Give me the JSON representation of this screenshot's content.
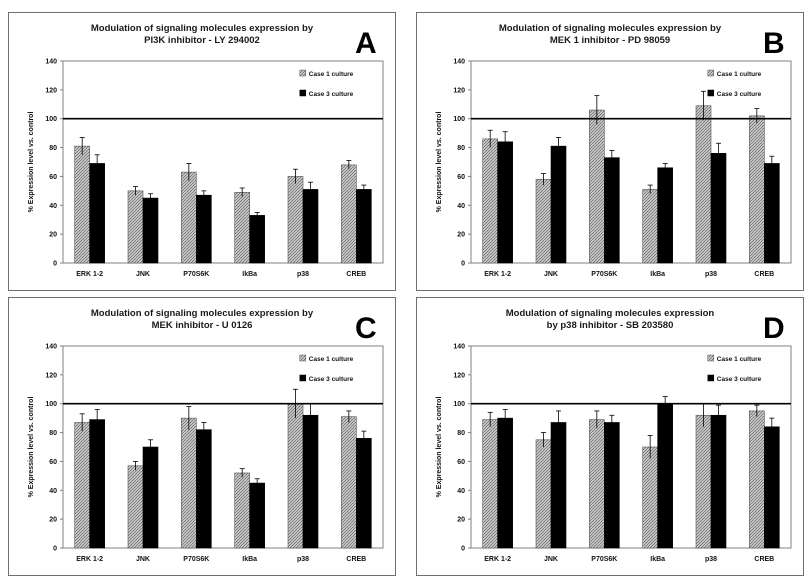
{
  "colors": {
    "case1": "#bdbdbd",
    "case3": "#000000",
    "frame": "#6f6f6f"
  },
  "chart_data": [
    {
      "type": "bar",
      "panel_letter": "A",
      "title_lines": [
        "Modulation of signaling molecules expression by",
        "PI3K inhibitor -  LY 294002"
      ],
      "ylabel": "% Expression level vs. control",
      "ylim": [
        0,
        140
      ],
      "yticks": [
        "0",
        "20",
        "40",
        "60",
        "80",
        "100",
        "120",
        "140"
      ],
      "reference_line": 100,
      "categories": [
        "ERK 1-2",
        "JNK",
        "P70S6K",
        "IkBa",
        "p38",
        "CREB"
      ],
      "series": [
        {
          "name": "Case 1 culture",
          "values": [
            81,
            50,
            63,
            49,
            60,
            68
          ],
          "errors": [
            6,
            3,
            6,
            3,
            5,
            3
          ]
        },
        {
          "name": "Case 3 culture",
          "values": [
            69,
            45,
            47,
            33,
            51,
            51
          ],
          "errors": [
            6,
            3,
            3,
            2,
            5,
            3
          ]
        }
      ]
    },
    {
      "type": "bar",
      "panel_letter": "B",
      "title_lines": [
        "Modulation of signaling molecules expression by",
        "MEK 1  inhibitor -  PD 98059"
      ],
      "ylabel": "% Expression level vs. control",
      "ylim": [
        0,
        140
      ],
      "yticks": [
        "0",
        "20",
        "40",
        "60",
        "80",
        "100",
        "120",
        "140"
      ],
      "reference_line": 100,
      "categories": [
        "ERK 1-2",
        "JNK",
        "P70S6K",
        "IkBa",
        "p38",
        "CREB"
      ],
      "series": [
        {
          "name": "Case 1 culture",
          "values": [
            86,
            58,
            106,
            51,
            109,
            102
          ],
          "errors": [
            6,
            4,
            10,
            3,
            10,
            5
          ]
        },
        {
          "name": "Case 3 culture",
          "values": [
            84,
            81,
            73,
            66,
            76,
            69
          ],
          "errors": [
            7,
            6,
            5,
            3,
            7,
            5
          ]
        }
      ]
    },
    {
      "type": "bar",
      "panel_letter": "C",
      "title_lines": [
        "Modulation of signaling molecules expression by",
        "MEK inhibitor - U 0126"
      ],
      "ylabel": "% Expression level vs. control",
      "ylim": [
        0,
        140
      ],
      "yticks": [
        "0",
        "20",
        "40",
        "60",
        "80",
        "100",
        "120",
        "140"
      ],
      "reference_line": 100,
      "categories": [
        "ERK 1-2",
        "JNK",
        "P70S6K",
        "IkBa",
        "p38",
        "CREB"
      ],
      "series": [
        {
          "name": "Case 1 culture",
          "values": [
            87,
            57,
            90,
            52,
            100,
            91
          ],
          "errors": [
            6,
            3,
            8,
            3,
            10,
            4
          ]
        },
        {
          "name": "Case 3 culture",
          "values": [
            89,
            70,
            82,
            45,
            92,
            76
          ],
          "errors": [
            7,
            5,
            5,
            3,
            8,
            5
          ]
        }
      ]
    },
    {
      "type": "bar",
      "panel_letter": "D",
      "title_lines": [
        "Modulation of signaling molecules expression",
        "by p38 inhibitor -  SB 203580"
      ],
      "ylabel": "% Expression level vs. control",
      "ylim": [
        0,
        140
      ],
      "yticks": [
        "0",
        "20",
        "40",
        "60",
        "80",
        "100",
        "120",
        "140"
      ],
      "reference_line": 100,
      "categories": [
        "ERK 1-2",
        "JNK",
        "P70S6K",
        "IkBa",
        "p38",
        "CREB"
      ],
      "series": [
        {
          "name": "Case 1 culture",
          "values": [
            89,
            75,
            89,
            70,
            92,
            95
          ],
          "errors": [
            5,
            5,
            6,
            8,
            8,
            4
          ]
        },
        {
          "name": "Case 3 culture",
          "values": [
            90,
            87,
            87,
            100,
            92,
            84
          ],
          "errors": [
            6,
            8,
            5,
            5,
            7,
            6
          ]
        }
      ]
    }
  ]
}
